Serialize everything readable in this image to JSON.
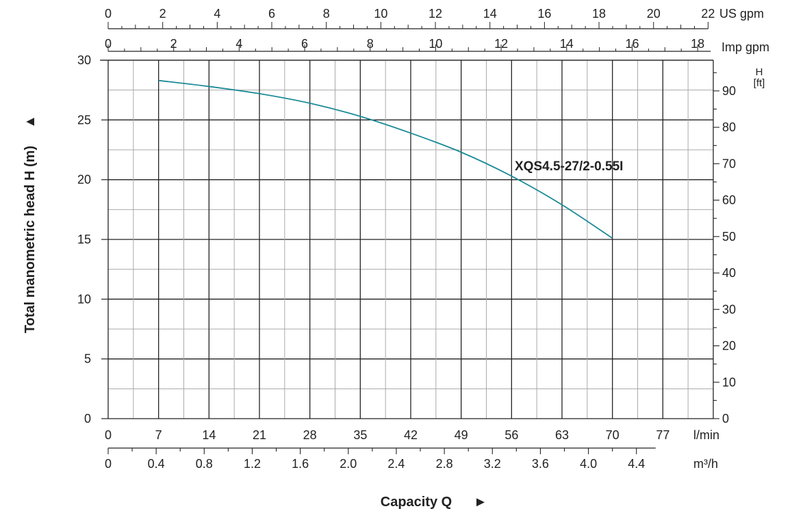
{
  "chart_data": {
    "type": "line",
    "ylabel": "Total manometric head H (m)",
    "ylabel_arrow": "▲",
    "xlabel": "Capacity Q",
    "xlabel_arrow": "►",
    "ylim": [
      0,
      30
    ],
    "xlim": [
      0,
      84
    ],
    "y_ticks": [
      0,
      5,
      10,
      15,
      20,
      25,
      30
    ],
    "x_ticks_lmin": [
      0,
      7,
      14,
      21,
      28,
      35,
      42,
      49,
      56,
      63,
      70,
      77
    ],
    "x_unit_lmin": "l/min",
    "x_ticks_m3h": [
      {
        "value": 0,
        "label": "0"
      },
      {
        "value": 0.4,
        "label": "0.4"
      },
      {
        "value": 0.8,
        "label": "0.8"
      },
      {
        "value": 1.2,
        "label": "1.2"
      },
      {
        "value": 1.6,
        "label": "1.6"
      },
      {
        "value": 2.0,
        "label": "2.0"
      },
      {
        "value": 2.4,
        "label": "2.4"
      },
      {
        "value": 2.8,
        "label": "2.8"
      },
      {
        "value": 3.2,
        "label": "3.2"
      },
      {
        "value": 3.6,
        "label": "3.6"
      },
      {
        "value": 4.0,
        "label": "4.0"
      },
      {
        "value": 4.4,
        "label": "4.4"
      }
    ],
    "x_unit_m3h": "m³/h",
    "x_ticks_usgpm": [
      0,
      2,
      4,
      6,
      8,
      10,
      12,
      14,
      16,
      18,
      20,
      22
    ],
    "x_unit_usgpm": "US gpm",
    "x_ticks_impgpm": [
      0,
      2,
      4,
      6,
      8,
      10,
      12,
      14,
      16,
      18
    ],
    "x_unit_impgpm": "Imp gpm",
    "y_ticks_ft": [
      0,
      10,
      20,
      30,
      40,
      50,
      60,
      70,
      80,
      90
    ],
    "y_unit_ft_top": "H",
    "y_unit_ft_bottom": "[ft]",
    "series": [
      {
        "name": "XQS4.5-27/2-0.55I",
        "color": "#1a8a96",
        "x": [
          7,
          14,
          21,
          28,
          35,
          42,
          49,
          56,
          63,
          70
        ],
        "y": [
          28.3,
          27.8,
          27.2,
          26.4,
          25.3,
          23.9,
          22.3,
          20.3,
          17.9,
          15.1
        ]
      }
    ]
  }
}
